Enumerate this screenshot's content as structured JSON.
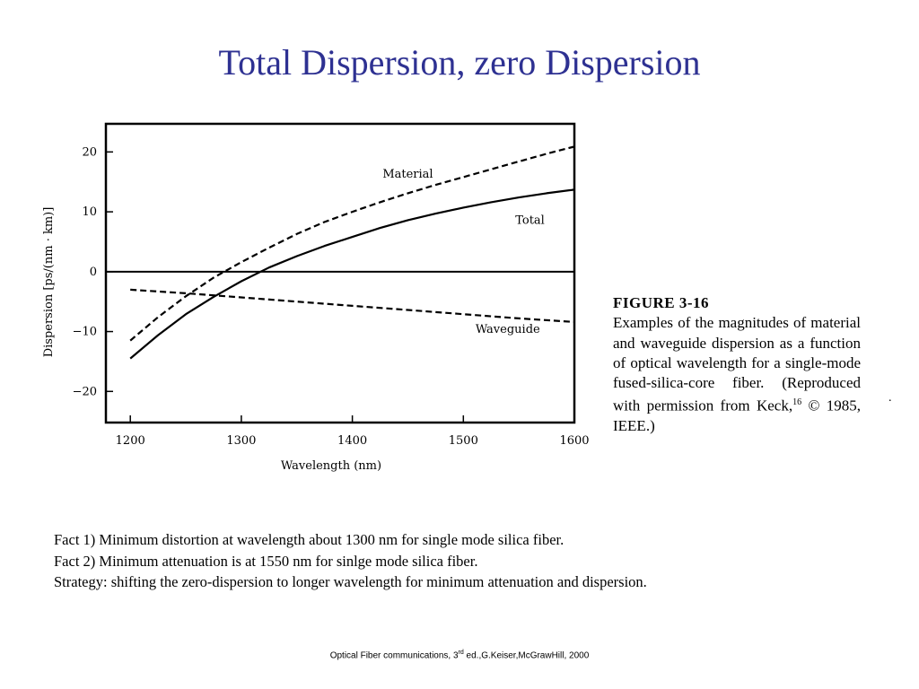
{
  "slide": {
    "title": "Total Dispersion, zero Dispersion",
    "title_color": "#2e3192"
  },
  "chart_data": {
    "type": "line",
    "xlabel": "Wavelength (nm)",
    "ylabel": "Dispersion [ps/(nm · km)]",
    "xlim": [
      1178,
      1600
    ],
    "ylim": [
      -25.2,
      24.7
    ],
    "x_ticks": [
      1200,
      1300,
      1400,
      1500,
      1600
    ],
    "x_tick_labels": [
      "1200",
      "1300",
      "1400",
      "1500",
      "1600"
    ],
    "y_ticks": [
      20,
      10,
      0,
      -10,
      -20
    ],
    "y_tick_labels": [
      "20",
      "10",
      "0",
      "−10",
      "−20"
    ],
    "zero_line": true,
    "grid": false,
    "legend": "none (series labeled inline)",
    "series": [
      {
        "name": "Material",
        "style": "dashed",
        "label_anchor": [
          1450,
          15.7
        ],
        "x": [
          1200,
          1225,
          1250,
          1275,
          1300,
          1325,
          1350,
          1375,
          1400,
          1425,
          1450,
          1475,
          1500,
          1525,
          1550,
          1575,
          1600
        ],
        "y": [
          -11.5,
          -7.6,
          -4.1,
          -1.0,
          1.6,
          4.0,
          6.3,
          8.3,
          10.0,
          11.6,
          13.1,
          14.5,
          15.8,
          17.1,
          18.4,
          19.7,
          20.9
        ]
      },
      {
        "name": "Total",
        "style": "solid",
        "label_anchor": [
          1560,
          8.0
        ],
        "x": [
          1200,
          1225,
          1250,
          1275,
          1300,
          1325,
          1350,
          1375,
          1400,
          1425,
          1450,
          1475,
          1500,
          1525,
          1550,
          1575,
          1600
        ],
        "y": [
          -14.5,
          -10.6,
          -7.1,
          -4.2,
          -1.6,
          0.7,
          2.6,
          4.3,
          5.8,
          7.3,
          8.6,
          9.7,
          10.7,
          11.6,
          12.4,
          13.1,
          13.7
        ]
      },
      {
        "name": "Waveguide",
        "style": "dashed",
        "label_anchor": [
          1540,
          -10.2
        ],
        "x": [
          1200,
          1250,
          1300,
          1350,
          1400,
          1450,
          1500,
          1550,
          1600
        ],
        "y": [
          -3.0,
          -3.6,
          -4.3,
          -5.0,
          -5.7,
          -6.4,
          -7.1,
          -7.8,
          -8.4
        ]
      }
    ]
  },
  "figure_caption": {
    "label": "FIGURE 3-16",
    "text_before_ref": "Examples of the magnitudes of material and waveguide dispersion as a function of optical wavelength for a single-mode fused-silica-core fiber. (Reproduced with permission from Keck,",
    "ref": "16",
    "text_after_ref": " © 1985, IEEE.)"
  },
  "facts": [
    "Fact 1) Minimum distortion at wavelength about 1300 nm for single mode silica fiber.",
    "Fact 2) Minimum attenuation is at 1550 nm for sinlge mode silica fiber.",
    "Strategy: shifting the zero-dispersion to longer wavelength for minimum attenuation and dispersion."
  ],
  "footer": {
    "before_sup": "Optical Fiber communications, 3",
    "sup": "rd",
    "after_sup": " ed.,G.Keiser,McGrawHill, 2000"
  },
  "stray_mark": "."
}
